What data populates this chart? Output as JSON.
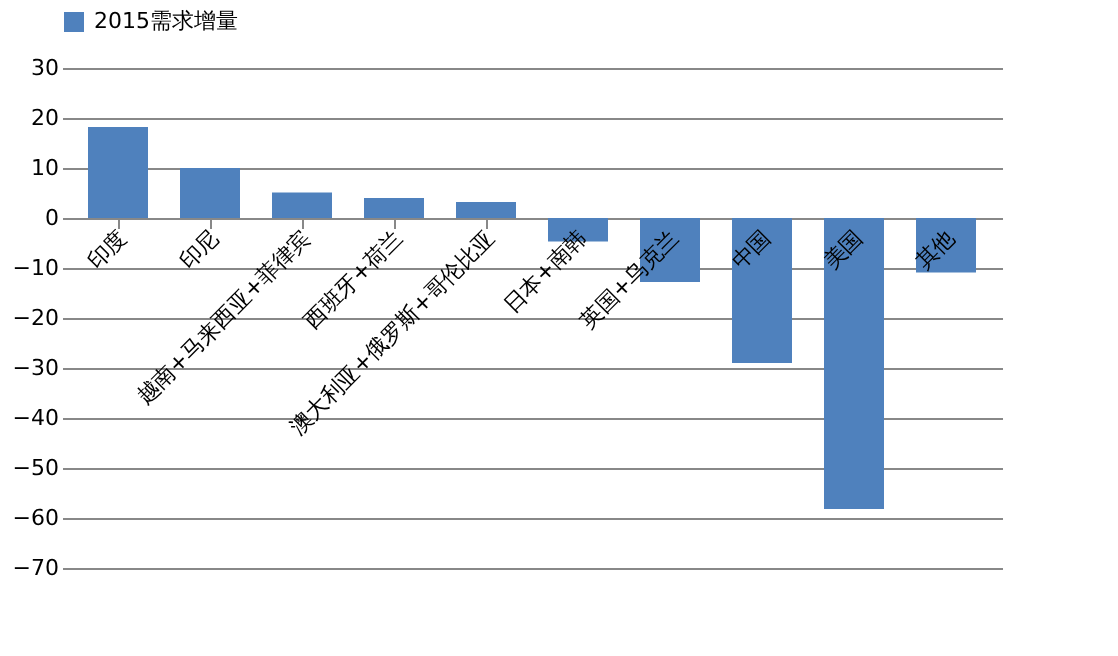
{
  "chart_data": {
    "type": "bar",
    "categories": [
      "印度",
      "印尼",
      "越南+马来西亚+菲律宾",
      "西班牙+荷兰",
      "澳大利亚+俄罗斯+哥伦比亚",
      "日本+南韩",
      "英国+乌克兰",
      "中国",
      "美国",
      "其他"
    ],
    "series": [
      {
        "name": "2015需求增量",
        "color": "#4f81bd",
        "values": [
          18.2,
          10,
          5.1,
          4,
          3.2,
          -4.7,
          -12.8,
          -29,
          -58.2,
          -10.9
        ]
      }
    ],
    "ylim": [
      -70,
      30
    ],
    "yticks": [
      -70,
      -60,
      -50,
      -40,
      -30,
      -20,
      -10,
      0,
      10,
      20,
      30
    ],
    "grid": "y",
    "legend": "top"
  }
}
